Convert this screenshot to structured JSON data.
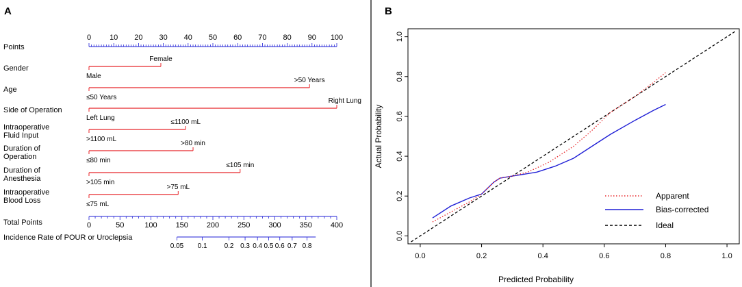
{
  "chart_data": [
    {
      "type": "nomogram",
      "panel_label": "A",
      "points_axis": {
        "label": "Points",
        "ticks": [
          0,
          10,
          20,
          30,
          40,
          50,
          60,
          70,
          80,
          90,
          100
        ]
      },
      "variables": [
        {
          "name": "Gender",
          "line_labels": [
            "Gender"
          ],
          "points": 29,
          "low": {
            "label": "Male",
            "points": 0
          },
          "high": {
            "label": "Female",
            "points": 29
          }
        },
        {
          "name": "Age",
          "line_labels": [
            "Age"
          ],
          "points": 89,
          "low": {
            "label": "≤50 Years",
            "points": 0
          },
          "high": {
            "label": ">50 Years",
            "points": 89
          }
        },
        {
          "name": "Side of Operation",
          "line_labels": [
            "Side of Operation"
          ],
          "points": 100,
          "low": {
            "label": "Left Lung",
            "points": 0
          },
          "high": {
            "label": "Right Lung",
            "points": 100
          }
        },
        {
          "name": "Intraoperative Fluid Input",
          "line_labels": [
            "Intraoperative",
            "Fluid Input"
          ],
          "points": 39,
          "low": {
            "label": ">1100 mL",
            "points": 0
          },
          "high": {
            "label": "≤1100 mL",
            "points": 39
          }
        },
        {
          "name": "Duration of Operation",
          "line_labels": [
            "Duration of",
            "Operation"
          ],
          "points": 42,
          "low": {
            "label": "≤80 min",
            "points": 0
          },
          "high": {
            "label": ">80 min",
            "points": 42
          }
        },
        {
          "name": "Duration of Anesthesia",
          "line_labels": [
            "Duration of",
            "Anesthesia"
          ],
          "points": 61,
          "low": {
            "label": ">105 min",
            "points": 0
          },
          "high": {
            "label": "≤105 min",
            "points": 61
          }
        },
        {
          "name": "Intraoperative Blood Loss",
          "line_labels": [
            "Intraoperative",
            "Blood Loss"
          ],
          "points": 36,
          "low": {
            "label": "≤75 mL",
            "points": 0
          },
          "high": {
            "label": ">75 mL",
            "points": 36
          }
        }
      ],
      "total_points_axis": {
        "label": "Total Points",
        "ticks": [
          0,
          50,
          100,
          150,
          200,
          250,
          300,
          350,
          400
        ]
      },
      "incidence_axis": {
        "label": "Incidence Rate of POUR or Uroclepsia",
        "ticks": [
          {
            "label": "0.05",
            "total_points": 142
          },
          {
            "label": "0.1",
            "total_points": 183
          },
          {
            "label": "0.2",
            "total_points": 226
          },
          {
            "label": "0.3",
            "total_points": 252
          },
          {
            "label": "0.4",
            "total_points": 272
          },
          {
            "label": "0.5",
            "total_points": 290
          },
          {
            "label": "0.6",
            "total_points": 308
          },
          {
            "label": "0.7",
            "total_points": 328
          },
          {
            "label": "0.8",
            "total_points": 352
          }
        ],
        "range_total_points": [
          142,
          366
        ]
      }
    },
    {
      "type": "line",
      "panel_label": "B",
      "xlabel": "Predicted Probability",
      "ylabel": "Actual Probability",
      "xlim": [
        -0.04,
        1.04
      ],
      "ylim": [
        -0.04,
        1.04
      ],
      "xticks": [
        "0.0",
        "0.2",
        "0.4",
        "0.6",
        "0.8",
        "1.0"
      ],
      "yticks": [
        "0.0",
        "0.2",
        "0.4",
        "0.6",
        "0.8",
        "1.0"
      ],
      "legend_position": "bottom-right",
      "series": [
        {
          "name": "Apparent",
          "color": "#e8262a",
          "dash": "dotted",
          "x": [
            0.04,
            0.1,
            0.16,
            0.2,
            0.24,
            0.26,
            0.3,
            0.35,
            0.42,
            0.5,
            0.56,
            0.62,
            0.7,
            0.76,
            0.8
          ],
          "y": [
            0.07,
            0.12,
            0.17,
            0.21,
            0.27,
            0.29,
            0.3,
            0.32,
            0.37,
            0.45,
            0.53,
            0.62,
            0.7,
            0.77,
            0.82
          ]
        },
        {
          "name": "Bias-corrected",
          "color": "#1f1fd6",
          "dash": "solid",
          "x": [
            0.04,
            0.1,
            0.16,
            0.2,
            0.24,
            0.26,
            0.3,
            0.38,
            0.44,
            0.5,
            0.56,
            0.62,
            0.7,
            0.76,
            0.8
          ],
          "y": [
            0.09,
            0.15,
            0.19,
            0.21,
            0.27,
            0.29,
            0.3,
            0.32,
            0.35,
            0.39,
            0.45,
            0.51,
            0.58,
            0.63,
            0.66
          ]
        },
        {
          "name": "Ideal",
          "color": "#000000",
          "dash": "dashed",
          "x": [
            -0.03,
            1.03
          ],
          "y": [
            -0.03,
            1.03
          ]
        }
      ]
    }
  ]
}
